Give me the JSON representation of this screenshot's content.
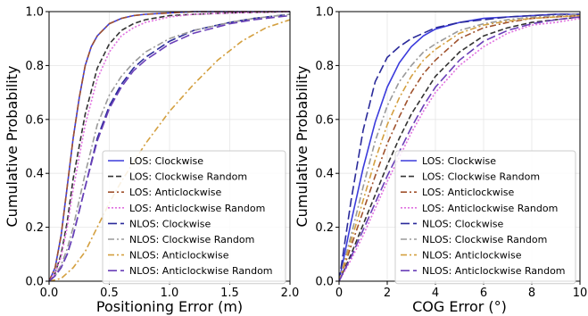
{
  "chart_data": [
    {
      "type": "line",
      "xlabel": "Positioning Error (m)",
      "ylabel": "Cumulative Probability",
      "xlim": [
        0,
        2.0
      ],
      "ylim": [
        0,
        1.0
      ],
      "xticks": [
        "0.0",
        "0.5",
        "1.0",
        "1.5",
        "2.0"
      ],
      "yticks": [
        "0.0",
        "0.2",
        "0.4",
        "0.6",
        "0.8",
        "1.0"
      ],
      "grid": true,
      "legend": "bottom-right",
      "series": [
        {
          "name": "LOS: Clockwise",
          "color": "#3b3bdc",
          "dash": "solid",
          "x": [
            0,
            0.05,
            0.1,
            0.15,
            0.2,
            0.25,
            0.3,
            0.35,
            0.4,
            0.5,
            0.6,
            0.7,
            0.8,
            1.0,
            1.2,
            2.0
          ],
          "y": [
            0,
            0.05,
            0.17,
            0.35,
            0.53,
            0.68,
            0.8,
            0.87,
            0.91,
            0.955,
            0.975,
            0.985,
            0.99,
            0.995,
            1.0,
            1.0
          ]
        },
        {
          "name": "LOS: Clockwise Random",
          "color": "#333333",
          "dash": "dashed",
          "x": [
            0,
            0.05,
            0.1,
            0.15,
            0.2,
            0.3,
            0.4,
            0.5,
            0.6,
            0.7,
            0.8,
            1.0,
            1.2,
            1.5,
            2.0
          ],
          "y": [
            0,
            0.03,
            0.1,
            0.22,
            0.38,
            0.62,
            0.79,
            0.88,
            0.93,
            0.955,
            0.97,
            0.985,
            0.99,
            0.995,
            1.0
          ]
        },
        {
          "name": "LOS: Anticlockwise",
          "color": "#a0522d",
          "dash": "dashdot",
          "x": [
            0,
            0.05,
            0.1,
            0.15,
            0.2,
            0.25,
            0.3,
            0.35,
            0.4,
            0.5,
            0.6,
            0.7,
            0.8,
            1.0,
            1.2,
            2.0
          ],
          "y": [
            0,
            0.05,
            0.17,
            0.35,
            0.53,
            0.68,
            0.8,
            0.87,
            0.91,
            0.955,
            0.975,
            0.985,
            0.99,
            0.995,
            1.0,
            1.0
          ]
        },
        {
          "name": "LOS: Anticlockwise Random",
          "color": "#e070e0",
          "dash": "dotted",
          "x": [
            0,
            0.05,
            0.1,
            0.15,
            0.2,
            0.3,
            0.4,
            0.5,
            0.6,
            0.7,
            0.8,
            1.0,
            1.2,
            1.5,
            2.0
          ],
          "y": [
            0,
            0.03,
            0.09,
            0.2,
            0.34,
            0.58,
            0.75,
            0.85,
            0.91,
            0.94,
            0.96,
            0.98,
            0.99,
            0.995,
            1.0
          ]
        },
        {
          "name": "NLOS: Clockwise",
          "color": "#2a2a9a",
          "dash": "longdash",
          "x": [
            0,
            0.05,
            0.1,
            0.15,
            0.2,
            0.3,
            0.4,
            0.5,
            0.6,
            0.7,
            0.8,
            1.0,
            1.2,
            1.5,
            1.7,
            2.0
          ],
          "y": [
            0,
            0.02,
            0.05,
            0.1,
            0.17,
            0.35,
            0.53,
            0.65,
            0.73,
            0.79,
            0.83,
            0.89,
            0.93,
            0.96,
            0.975,
            0.99
          ]
        },
        {
          "name": "NLOS: Clockwise Random",
          "color": "#9a9a9a",
          "dash": "dashdot",
          "x": [
            0,
            0.05,
            0.1,
            0.15,
            0.2,
            0.3,
            0.4,
            0.5,
            0.6,
            0.7,
            0.8,
            1.0,
            1.2,
            1.5,
            1.7,
            2.0
          ],
          "y": [
            0,
            0.02,
            0.06,
            0.12,
            0.2,
            0.4,
            0.58,
            0.69,
            0.76,
            0.81,
            0.85,
            0.9,
            0.93,
            0.96,
            0.975,
            0.99
          ]
        },
        {
          "name": "NLOS: Anticlockwise",
          "color": "#d4a040",
          "dash": "dashdot",
          "x": [
            0,
            0.1,
            0.2,
            0.3,
            0.4,
            0.5,
            0.6,
            0.7,
            0.8,
            0.9,
            1.0,
            1.2,
            1.4,
            1.6,
            1.8,
            2.0
          ],
          "y": [
            0,
            0.01,
            0.05,
            0.11,
            0.2,
            0.29,
            0.37,
            0.44,
            0.51,
            0.57,
            0.63,
            0.73,
            0.82,
            0.89,
            0.94,
            0.97
          ]
        },
        {
          "name": "NLOS: Anticlockwise Random",
          "color": "#6a3fb8",
          "dash": "longdash",
          "x": [
            0,
            0.05,
            0.1,
            0.15,
            0.2,
            0.3,
            0.4,
            0.5,
            0.6,
            0.7,
            0.8,
            1.0,
            1.2,
            1.5,
            1.7,
            2.0
          ],
          "y": [
            0,
            0.02,
            0.05,
            0.1,
            0.17,
            0.35,
            0.52,
            0.64,
            0.72,
            0.78,
            0.82,
            0.88,
            0.92,
            0.955,
            0.97,
            0.985
          ]
        }
      ]
    },
    {
      "type": "line",
      "xlabel": "COG Error (°)",
      "ylabel": "Cumulative Probability",
      "xlim": [
        0,
        10
      ],
      "ylim": [
        0,
        1.0
      ],
      "xticks": [
        "0",
        "2",
        "4",
        "6",
        "8",
        "10"
      ],
      "yticks": [
        "0.0",
        "0.2",
        "0.4",
        "0.6",
        "0.8",
        "1.0"
      ],
      "grid": true,
      "legend": "bottom-right",
      "series": [
        {
          "name": "LOS: Clockwise",
          "color": "#3b3bdc",
          "dash": "solid",
          "x": [
            0,
            0.5,
            1,
            1.5,
            2,
            2.5,
            3,
            3.5,
            4,
            5,
            6,
            7,
            8,
            9,
            10
          ],
          "y": [
            0,
            0.22,
            0.42,
            0.59,
            0.72,
            0.81,
            0.87,
            0.91,
            0.935,
            0.96,
            0.975,
            0.98,
            0.985,
            0.99,
            0.99
          ]
        },
        {
          "name": "LOS: Clockwise Random",
          "color": "#333333",
          "dash": "dashed",
          "x": [
            0,
            0.5,
            1,
            1.5,
            2,
            2.5,
            3,
            3.5,
            4,
            5,
            6,
            7,
            8,
            9,
            10
          ],
          "y": [
            0,
            0.1,
            0.21,
            0.32,
            0.43,
            0.53,
            0.62,
            0.69,
            0.76,
            0.85,
            0.91,
            0.94,
            0.96,
            0.97,
            0.98
          ]
        },
        {
          "name": "LOS: Anticlockwise",
          "color": "#a0522d",
          "dash": "dashdot",
          "x": [
            0,
            0.5,
            1,
            1.5,
            2,
            2.5,
            3,
            3.5,
            4,
            5,
            6,
            7,
            8,
            9,
            10
          ],
          "y": [
            0,
            0.13,
            0.26,
            0.39,
            0.51,
            0.61,
            0.7,
            0.77,
            0.82,
            0.9,
            0.94,
            0.96,
            0.975,
            0.98,
            0.985
          ]
        },
        {
          "name": "LOS: Anticlockwise Random",
          "color": "#e070e0",
          "dash": "dotted",
          "x": [
            0,
            0.5,
            1,
            1.5,
            2,
            2.5,
            3,
            3.5,
            4,
            5,
            6,
            7,
            8,
            9,
            10
          ],
          "y": [
            0,
            0.08,
            0.17,
            0.27,
            0.37,
            0.46,
            0.55,
            0.63,
            0.7,
            0.8,
            0.87,
            0.92,
            0.95,
            0.96,
            0.975
          ]
        },
        {
          "name": "NLOS: Clockwise",
          "color": "#2a2a9a",
          "dash": "longdash",
          "x": [
            0,
            0.5,
            1,
            1.5,
            2,
            2.5,
            3,
            3.5,
            4,
            5,
            6,
            7,
            8,
            9,
            10
          ],
          "y": [
            0,
            0.3,
            0.56,
            0.74,
            0.83,
            0.87,
            0.9,
            0.92,
            0.94,
            0.96,
            0.97,
            0.98,
            0.985,
            0.99,
            0.99
          ]
        },
        {
          "name": "NLOS: Clockwise Random",
          "color": "#9a9a9a",
          "dash": "dashdot",
          "x": [
            0,
            0.5,
            1,
            1.5,
            2,
            2.5,
            3,
            3.5,
            4,
            5,
            6,
            7,
            8,
            9,
            10
          ],
          "y": [
            0,
            0.17,
            0.35,
            0.52,
            0.65,
            0.74,
            0.8,
            0.85,
            0.88,
            0.93,
            0.955,
            0.97,
            0.98,
            0.985,
            0.99
          ]
        },
        {
          "name": "NLOS: Anticlockwise",
          "color": "#d4a040",
          "dash": "dashdot",
          "x": [
            0,
            0.5,
            1,
            1.5,
            2,
            2.5,
            3,
            3.5,
            4,
            5,
            6,
            7,
            8,
            9,
            10
          ],
          "y": [
            0,
            0.15,
            0.3,
            0.45,
            0.58,
            0.68,
            0.76,
            0.82,
            0.86,
            0.92,
            0.95,
            0.965,
            0.975,
            0.98,
            0.985
          ]
        },
        {
          "name": "NLOS: Anticlockwise Random",
          "color": "#6a3fb8",
          "dash": "longdash",
          "x": [
            0,
            0.5,
            1,
            1.5,
            2,
            2.5,
            3,
            3.5,
            4,
            5,
            6,
            7,
            8,
            9,
            10
          ],
          "y": [
            0,
            0.09,
            0.19,
            0.29,
            0.39,
            0.48,
            0.57,
            0.65,
            0.72,
            0.82,
            0.89,
            0.93,
            0.955,
            0.97,
            0.98
          ]
        }
      ]
    }
  ]
}
